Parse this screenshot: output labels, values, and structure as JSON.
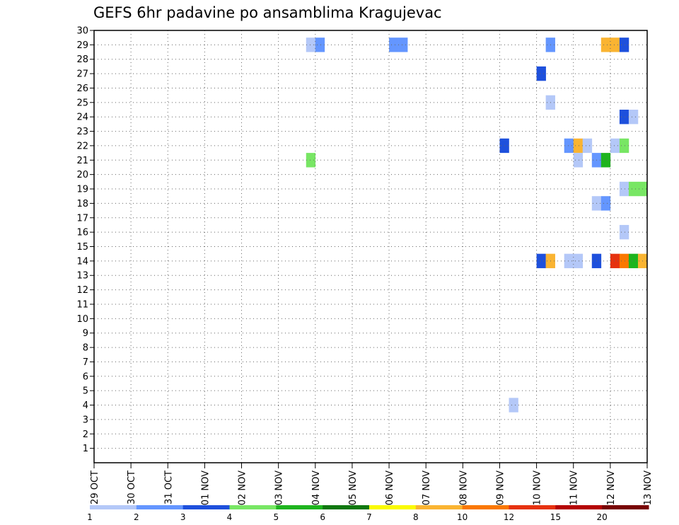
{
  "chart_data": {
    "type": "heatmap",
    "title": "GEFS 6hr padavine po ansamblima Kragujevac",
    "xlabel": "",
    "ylabel": "",
    "x_ticks": [
      "29 OCT",
      "30 OCT",
      "31 OCT",
      "01 NOV",
      "02 NOV",
      "03 NOV",
      "04 NOV",
      "05 NOV",
      "06 NOV",
      "07 NOV",
      "08 NOV",
      "09 NOV",
      "10 NOV",
      "11 NOV",
      "12 NOV",
      "13 NOV"
    ],
    "x_unit": "days since 29 OCT",
    "xlim": [
      0,
      15
    ],
    "ylim": [
      0,
      30
    ],
    "y_ticks": [
      1,
      2,
      3,
      4,
      5,
      6,
      7,
      8,
      9,
      10,
      11,
      12,
      13,
      14,
      15,
      16,
      17,
      18,
      19,
      20,
      21,
      22,
      23,
      24,
      25,
      26,
      27,
      28,
      29,
      30
    ],
    "grid": true,
    "legend_position": "bottom colorbar",
    "colorbar": {
      "colors": [
        "#b4c8f8",
        "#6496ff",
        "#1e50dc",
        "#78e664",
        "#1eb41e",
        "#0f780f",
        "#fafa00",
        "#fab432",
        "#fa7800",
        "#e6320f",
        "#b40000",
        "#780000"
      ],
      "labels": [
        "1",
        "2",
        "3",
        "4",
        "5",
        "6",
        "7",
        "8",
        "10",
        "12",
        "15",
        "20",
        ""
      ]
    },
    "cells": [
      {
        "member": 29,
        "t": 5.75,
        "cls": 0
      },
      {
        "member": 29,
        "t": 6.0,
        "cls": 1
      },
      {
        "member": 29,
        "t": 8.0,
        "cls": 1
      },
      {
        "member": 29,
        "t": 8.25,
        "cls": 1
      },
      {
        "member": 29,
        "t": 12.25,
        "cls": 1
      },
      {
        "member": 29,
        "t": 13.75,
        "cls": 7
      },
      {
        "member": 29,
        "t": 14.0,
        "cls": 7
      },
      {
        "member": 29,
        "t": 14.25,
        "cls": 2
      },
      {
        "member": 27,
        "t": 12.0,
        "cls": 2
      },
      {
        "member": 25,
        "t": 12.25,
        "cls": 0
      },
      {
        "member": 24,
        "t": 14.25,
        "cls": 2
      },
      {
        "member": 24,
        "t": 14.5,
        "cls": 0
      },
      {
        "member": 22,
        "t": 11.0,
        "cls": 2
      },
      {
        "member": 22,
        "t": 12.75,
        "cls": 1
      },
      {
        "member": 22,
        "t": 13.0,
        "cls": 7
      },
      {
        "member": 22,
        "t": 13.25,
        "cls": 0
      },
      {
        "member": 22,
        "t": 14.0,
        "cls": 0
      },
      {
        "member": 22,
        "t": 14.25,
        "cls": 3
      },
      {
        "member": 21,
        "t": 13.0,
        "cls": 0
      },
      {
        "member": 21,
        "t": 13.5,
        "cls": 1
      },
      {
        "member": 21,
        "t": 13.75,
        "cls": 4
      },
      {
        "member": 21,
        "t": 5.75,
        "cls": 3
      },
      {
        "member": 19,
        "t": 14.25,
        "cls": 0
      },
      {
        "member": 19,
        "t": 14.5,
        "cls": 3
      },
      {
        "member": 19,
        "t": 14.75,
        "cls": 3
      },
      {
        "member": 18,
        "t": 13.5,
        "cls": 0
      },
      {
        "member": 18,
        "t": 13.75,
        "cls": 1
      },
      {
        "member": 16,
        "t": 14.25,
        "cls": 0
      },
      {
        "member": 14,
        "t": 12.0,
        "cls": 2
      },
      {
        "member": 14,
        "t": 12.25,
        "cls": 7
      },
      {
        "member": 14,
        "t": 12.75,
        "cls": 0
      },
      {
        "member": 14,
        "t": 13.0,
        "cls": 0
      },
      {
        "member": 14,
        "t": 13.5,
        "cls": 2
      },
      {
        "member": 14,
        "t": 14.0,
        "cls": 9
      },
      {
        "member": 14,
        "t": 14.25,
        "cls": 8
      },
      {
        "member": 14,
        "t": 14.5,
        "cls": 4
      },
      {
        "member": 14,
        "t": 14.75,
        "cls": 7
      },
      {
        "member": 4,
        "t": 11.25,
        "cls": 0
      }
    ]
  }
}
